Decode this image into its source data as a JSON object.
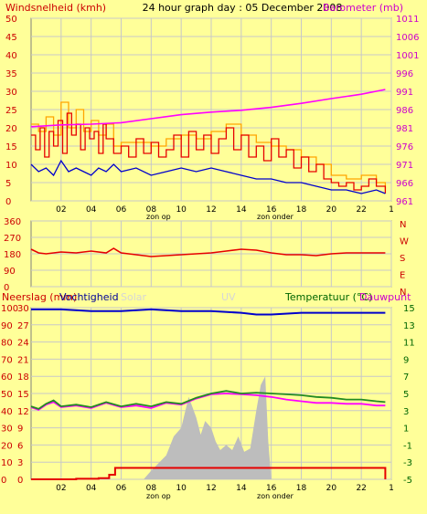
{
  "header": {
    "left_label": "Windsnelheid (kmh)",
    "title": "24 hour graph day : 05 December 2008",
    "right_label": "Barometer (mb)"
  },
  "bottom_header": {
    "rain_label": "Neerslag (mm)",
    "humidity_label": "Vochtigheid",
    "solar_label": "Solar",
    "uv_label": "UV",
    "temp_label": "Temperatuur (°C)",
    "dew_label": "Dauwpunt"
  },
  "markers": {
    "sunrise": "zon op",
    "sunset": "zon onder"
  },
  "x_ticks": [
    "02",
    "04",
    "06",
    "08",
    "10",
    "12",
    "14",
    "16",
    "18",
    "20",
    "22",
    "1"
  ],
  "colors": {
    "background": "#ffff99",
    "plot_bg": "#ffff99",
    "grid": "#c8c8c8",
    "wind": "#e60000",
    "gust": "#ffa500",
    "avg_wind": "#0000cc",
    "barometer": "#ff00ff",
    "direction": "#e60000",
    "humidity": "#0000cc",
    "temperature": "#228b22",
    "dewpoint": "#ff00ff",
    "rain": "#e60000",
    "solar": "#bdbdbd",
    "left_axis_text": "#cc0000",
    "right_axis_text_top": "#cc00cc",
    "right_axis_text_bottom": "#006600"
  },
  "chart_data": [
    {
      "type": "line",
      "name": "wind-barometer",
      "x_range": [
        0,
        24
      ],
      "ylim": [
        0,
        50
      ],
      "y2lim": [
        961,
        1011
      ],
      "y_ticks": [
        0,
        5,
        10,
        15,
        20,
        25,
        30,
        35,
        40,
        45,
        50
      ],
      "y2_ticks": [
        961,
        966,
        971,
        976,
        981,
        986,
        991,
        996,
        1001,
        1006,
        1011
      ],
      "y_axis_label": "Windsnelheid (kmh)",
      "y2_axis_label": "Barometer (mb)",
      "series": [
        {
          "name": "wind",
          "axis": "left",
          "style": "step",
          "x": [
            0,
            0.3,
            0.6,
            0.9,
            1.2,
            1.5,
            1.8,
            2.1,
            2.4,
            2.7,
            3.0,
            3.3,
            3.6,
            3.9,
            4.2,
            4.5,
            4.8,
            5.0,
            5.5,
            6,
            6.5,
            7,
            7.5,
            8,
            8.5,
            9,
            9.5,
            10,
            10.5,
            11,
            11.5,
            12,
            12.5,
            13,
            13.5,
            14,
            14.5,
            15,
            15.5,
            16,
            16.5,
            17,
            17.5,
            18,
            18.5,
            19,
            19.5,
            20,
            20.5,
            21,
            21.5,
            22,
            22.5,
            23,
            23.6
          ],
          "y": [
            18,
            14,
            20,
            12,
            19,
            15,
            22,
            13,
            24,
            18,
            21,
            14,
            20,
            17,
            19,
            13,
            21,
            17,
            13,
            15,
            12,
            17,
            13,
            16,
            12,
            14,
            18,
            12,
            19,
            14,
            18,
            13,
            17,
            20,
            14,
            18,
            12,
            15,
            11,
            17,
            12,
            14,
            9,
            12,
            8,
            10,
            6,
            5,
            4,
            5,
            3,
            4,
            6,
            4,
            2
          ]
        },
        {
          "name": "gust",
          "axis": "left",
          "style": "step",
          "x": [
            0,
            0.5,
            1.0,
            1.5,
            2.0,
            2.5,
            3.0,
            3.5,
            4.0,
            4.5,
            5.0,
            5.5,
            6,
            7,
            8,
            9,
            10,
            11,
            12,
            13,
            14,
            15,
            16,
            17,
            18,
            19,
            20,
            21,
            22,
            23,
            23.6
          ],
          "y": [
            21,
            19,
            23,
            18,
            27,
            20,
            25,
            19,
            22,
            18,
            21,
            15,
            16,
            16,
            15,
            17,
            18,
            17,
            19,
            21,
            18,
            16,
            15,
            14,
            12,
            10,
            7,
            6,
            7,
            5,
            3
          ]
        },
        {
          "name": "avg_wind",
          "axis": "left",
          "style": "line",
          "x": [
            0,
            0.5,
            1,
            1.5,
            2,
            2.5,
            3,
            3.5,
            4,
            4.5,
            5,
            5.5,
            6,
            7,
            8,
            9,
            10,
            11,
            12,
            13,
            14,
            15,
            16,
            17,
            18,
            19,
            20,
            21,
            22,
            23,
            23.6
          ],
          "y": [
            10,
            8,
            9,
            7,
            11,
            8,
            9,
            8,
            7,
            9,
            8,
            10,
            8,
            9,
            7,
            8,
            9,
            8,
            9,
            8,
            7,
            6,
            6,
            5,
            5,
            4,
            3,
            3,
            2,
            3,
            2
          ]
        },
        {
          "name": "barometer",
          "axis": "right",
          "x": [
            0,
            2,
            4,
            6,
            8,
            10,
            12,
            14,
            16,
            18,
            20,
            22,
            23.6
          ],
          "y": [
            981.3,
            981.8,
            982.0,
            982.4,
            983.5,
            984.6,
            985.3,
            985.8,
            986.6,
            987.7,
            989.0,
            990.2,
            991.5
          ]
        }
      ]
    },
    {
      "type": "line",
      "name": "wind-direction",
      "x_range": [
        0,
        24
      ],
      "ylim": [
        0,
        360
      ],
      "y_ticks": [
        0,
        90,
        180,
        270,
        360
      ],
      "compass_labels": [
        "N",
        "W",
        "S",
        "E",
        "N"
      ],
      "series": [
        {
          "name": "direction",
          "x": [
            0,
            0.5,
            1,
            2,
            3,
            4,
            5,
            5.5,
            6,
            7,
            8,
            9,
            10,
            11,
            12,
            13,
            14,
            15,
            16,
            17,
            18,
            19,
            20,
            21,
            22,
            23,
            23.6
          ],
          "y": [
            205,
            185,
            180,
            190,
            185,
            195,
            185,
            210,
            185,
            175,
            165,
            170,
            175,
            180,
            185,
            195,
            205,
            200,
            185,
            175,
            175,
            170,
            180,
            185,
            185,
            185,
            185
          ]
        }
      ]
    },
    {
      "type": "line",
      "name": "rain-humidity-temperature",
      "x_range": [
        0,
        24
      ],
      "ylim": [
        0,
        100
      ],
      "y_ticks": [
        0,
        10,
        20,
        30,
        40,
        50,
        60,
        70,
        80,
        90,
        100
      ],
      "rain_ticks": [
        0,
        3,
        6,
        9,
        12,
        15,
        18,
        21,
        24,
        27,
        30
      ],
      "temp_lim": [
        -5,
        15
      ],
      "temp_ticks": [
        -5,
        -3,
        -1,
        1,
        3,
        5,
        7,
        9,
        11,
        13,
        15
      ],
      "temp_tick_labels": [
        "-5",
        "-3",
        "-1",
        "1",
        "3",
        "5",
        "7",
        "9",
        "11",
        "13",
        "15"
      ],
      "series": [
        {
          "name": "humidity",
          "axis": "percent",
          "x": [
            0,
            2,
            4,
            6,
            8,
            10,
            12,
            14,
            15,
            16,
            18,
            20,
            22,
            23.6
          ],
          "y": [
            99,
            99,
            98,
            98,
            99,
            98,
            98,
            97,
            96,
            96,
            97,
            97,
            97,
            97
          ]
        },
        {
          "name": "temperature",
          "axis": "temp",
          "x": [
            0,
            0.5,
            1,
            1.5,
            2,
            3,
            4,
            5,
            6,
            7,
            8,
            9,
            10,
            11,
            12,
            13,
            14,
            15,
            16,
            17,
            18,
            19,
            20,
            21,
            22,
            23,
            23.6
          ],
          "y": [
            3.5,
            3.2,
            3.8,
            4.2,
            3.5,
            3.7,
            3.4,
            4.0,
            3.5,
            3.8,
            3.5,
            4.0,
            3.8,
            4.5,
            5.0,
            5.3,
            5.0,
            5.1,
            5.0,
            4.9,
            4.8,
            4.6,
            4.5,
            4.3,
            4.3,
            4.1,
            4.0
          ]
        },
        {
          "name": "dewpoint",
          "axis": "temp",
          "x": [
            0,
            0.5,
            1,
            1.5,
            2,
            3,
            4,
            5,
            6,
            7,
            8,
            9,
            10,
            11,
            12,
            13,
            14,
            15,
            16,
            17,
            18,
            19,
            20,
            21,
            22,
            23,
            23.6
          ],
          "y": [
            3.4,
            3.1,
            3.7,
            4.0,
            3.4,
            3.6,
            3.3,
            3.9,
            3.4,
            3.6,
            3.3,
            3.9,
            3.7,
            4.4,
            4.9,
            5.0,
            4.9,
            4.8,
            4.6,
            4.3,
            4.1,
            3.9,
            3.9,
            3.8,
            3.8,
            3.6,
            3.6
          ]
        },
        {
          "name": "rain",
          "axis": "rain",
          "style": "step",
          "x": [
            0,
            3,
            4.5,
            5.2,
            5.6,
            6,
            23.5,
            23.6
          ],
          "y": [
            0,
            0.1,
            0.2,
            0.8,
            2.0,
            2.0,
            2.0,
            0
          ]
        },
        {
          "name": "solar",
          "axis": "percent",
          "style": "area",
          "x": [
            0,
            7.5,
            8,
            9,
            9.5,
            10,
            10.5,
            11,
            11.3,
            11.6,
            12,
            12.3,
            12.6,
            13,
            13.4,
            13.8,
            14.2,
            14.6,
            15,
            15.3,
            15.6,
            15.8,
            16,
            17,
            23.6
          ],
          "y": [
            0,
            0,
            5,
            14,
            25,
            30,
            48,
            36,
            26,
            34,
            30,
            22,
            17,
            20,
            17,
            25,
            16,
            18,
            40,
            55,
            60,
            22,
            0,
            0,
            0
          ]
        }
      ]
    }
  ]
}
